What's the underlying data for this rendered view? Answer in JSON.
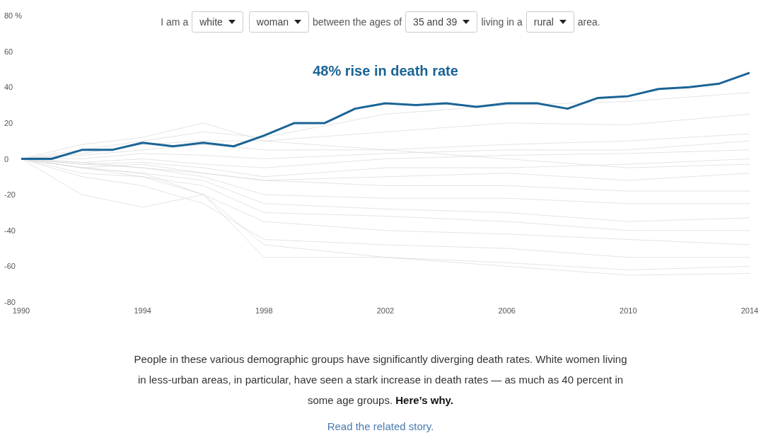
{
  "chart_data": {
    "type": "line",
    "x": [
      1990,
      1991,
      1992,
      1993,
      1994,
      1995,
      1996,
      1997,
      1998,
      1999,
      2000,
      2001,
      2002,
      2003,
      2004,
      2005,
      2006,
      2007,
      2008,
      2009,
      2010,
      2011,
      2012,
      2013,
      2014
    ],
    "xlim": [
      1990,
      2014
    ],
    "xticks": [
      1990,
      1994,
      1998,
      2002,
      2006,
      2010,
      2014
    ],
    "ylim": [
      -80,
      80
    ],
    "yticks": [
      -80,
      -60,
      -40,
      -20,
      0,
      20,
      40,
      60,
      {
        "value": 80,
        "label": "80 %"
      }
    ],
    "marker": "none",
    "line_style": "solid",
    "series": [
      {
        "color": "#d9d9d9",
        "x": [
          1990,
          1992,
          1994,
          1996,
          1998,
          2002,
          2006,
          2010,
          2014
        ],
        "values": [
          0,
          5,
          10,
          15,
          12,
          25,
          30,
          32,
          37
        ]
      },
      {
        "color": "#d9d9d9",
        "x": [
          1990,
          1992,
          1994,
          1996,
          1998,
          2002,
          2006,
          2010,
          2014
        ],
        "values": [
          0,
          3,
          8,
          10,
          10,
          15,
          20,
          19,
          25
        ]
      },
      {
        "color": "#d9d9d9",
        "x": [
          1990,
          1992,
          1994,
          1996,
          1998,
          2002,
          2006,
          2010,
          2014
        ],
        "values": [
          0,
          2,
          5,
          8,
          5,
          5,
          8,
          10,
          14
        ]
      },
      {
        "color": "#d9d9d9",
        "x": [
          1990,
          1992,
          1994,
          1996,
          1998,
          2002,
          2006,
          2010,
          2014
        ],
        "values": [
          0,
          0,
          3,
          2,
          0,
          3,
          5,
          5,
          10
        ]
      },
      {
        "color": "#d9d9d9",
        "x": [
          1990,
          1992,
          1994,
          1996,
          1998,
          2002,
          2006,
          2010,
          2014
        ],
        "values": [
          0,
          -2,
          0,
          -3,
          -5,
          0,
          2,
          3,
          5
        ]
      },
      {
        "color": "#d9d9d9",
        "x": [
          1990,
          1992,
          1994,
          1996,
          1998,
          2002,
          2006,
          2010,
          2014
        ],
        "values": [
          0,
          -3,
          -2,
          -5,
          -10,
          -5,
          -5,
          -3,
          0
        ]
      },
      {
        "color": "#d9d9d9",
        "x": [
          1990,
          1992,
          1994,
          1996,
          1998,
          2002,
          2006,
          2010,
          2014
        ],
        "values": [
          0,
          -5,
          -3,
          -8,
          -12,
          -10,
          -8,
          -12,
          -8
        ]
      },
      {
        "color": "#d9d9d9",
        "x": [
          1990,
          1992,
          1994,
          1996,
          1998,
          2002,
          2006,
          2010,
          2014
        ],
        "values": [
          0,
          -3,
          -5,
          -8,
          -12,
          -15,
          -15,
          -18,
          -18
        ]
      },
      {
        "color": "#d9d9d9",
        "x": [
          1990,
          1992,
          1994,
          1996,
          1998,
          2002,
          2006,
          2010,
          2014
        ],
        "values": [
          0,
          -2,
          -5,
          -10,
          -20,
          -22,
          -22,
          -25,
          -25
        ]
      },
      {
        "color": "#d9d9d9",
        "x": [
          1990,
          1992,
          1994,
          1996,
          1998,
          2002,
          2006,
          2010,
          2014
        ],
        "values": [
          0,
          -5,
          -8,
          -12,
          -25,
          -28,
          -30,
          -35,
          -33
        ]
      },
      {
        "color": "#d9d9d9",
        "x": [
          1990,
          1992,
          1994,
          1996,
          1998,
          2002,
          2006,
          2010,
          2014
        ],
        "values": [
          0,
          -8,
          -10,
          -15,
          -30,
          -32,
          -35,
          -40,
          -40
        ]
      },
      {
        "color": "#d9d9d9",
        "x": [
          1990,
          1992,
          1994,
          1996,
          1998,
          2002,
          2006,
          2010,
          2014
        ],
        "values": [
          0,
          -5,
          -10,
          -20,
          -35,
          -40,
          -42,
          -45,
          -48
        ]
      },
      {
        "color": "#d9d9d9",
        "x": [
          1990,
          1992,
          1994,
          1996,
          1998,
          2002,
          2006,
          2010,
          2014
        ],
        "values": [
          0,
          -10,
          -15,
          -25,
          -45,
          -48,
          -50,
          -55,
          -55
        ]
      },
      {
        "color": "#d9d9d9",
        "x": [
          1990,
          1992,
          1994,
          1996,
          1998,
          2002,
          2006,
          2010,
          2014
        ],
        "values": [
          0,
          -20,
          -27,
          -20,
          -55,
          -55,
          -58,
          -62,
          -60
        ]
      },
      {
        "color": "#d9d9d9",
        "x": [
          1990,
          1992,
          1994,
          1996,
          1998,
          2002,
          2006,
          2010,
          2014
        ],
        "values": [
          0,
          -5,
          -8,
          -20,
          -48,
          -55,
          -60,
          -65,
          -64
        ]
      },
      {
        "color": "#d9d9d9",
        "x": [
          1990,
          1992,
          1994,
          1996,
          1998,
          2002,
          2006,
          2010,
          2014
        ],
        "values": [
          0,
          8,
          12,
          20,
          10,
          5,
          0,
          -5,
          -3
        ]
      },
      {
        "color": "#1a6496",
        "values": [
          0,
          0,
          5,
          5,
          9,
          7,
          9,
          7,
          13,
          20,
          20,
          28,
          31,
          30,
          31,
          29,
          31,
          31,
          28,
          34,
          35,
          39,
          40,
          42,
          48
        ]
      }
    ],
    "annotations": [
      "I am a",
      "white",
      "woman",
      "between the ages of",
      "35 and 39",
      "living in a",
      "rural",
      "area.",
      "48% rise in death rate",
      "People in these various demographic groups have significantly diverging death rates. White women living in less-urban areas, in particular, have seen a stark increase in death rates — as much as 40 percent in some age groups.",
      "Here’s why.",
      "Read the related story."
    ]
  }
}
